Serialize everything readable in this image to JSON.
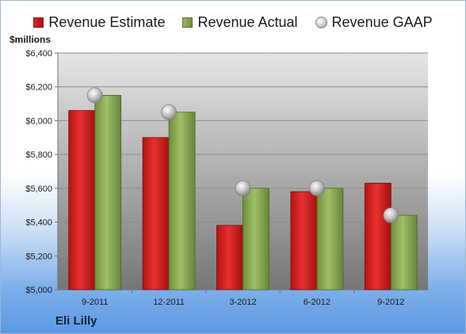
{
  "legend": {
    "estimate": "Revenue Estimate",
    "actual": "Revenue Actual",
    "gaap": "Revenue GAAP"
  },
  "unit_label": "$millions",
  "company": "Eli Lilly",
  "colors": {
    "estimate": "#c81e1e",
    "actual": "#86a651",
    "gaap": "#b9b9b9"
  },
  "chart_data": {
    "type": "bar",
    "categories": [
      "9-2011",
      "12-2011",
      "3-2012",
      "6-2012",
      "9-2012"
    ],
    "series": [
      {
        "name": "Revenue Estimate",
        "type": "bar",
        "values": [
          6060,
          5900,
          5380,
          5580,
          5630
        ]
      },
      {
        "name": "Revenue Actual",
        "type": "bar",
        "values": [
          6150,
          6050,
          5600,
          5600,
          5440
        ]
      },
      {
        "name": "Revenue GAAP",
        "type": "scatter",
        "values": [
          6150,
          6050,
          5600,
          5600,
          5440
        ]
      }
    ],
    "ylabel": "$millions",
    "ylim": [
      5000,
      6400
    ],
    "yticks": [
      5000,
      5200,
      5400,
      5600,
      5800,
      6000,
      6200,
      6400
    ],
    "ytick_labels": [
      "$5,000",
      "$5,200",
      "$5,400",
      "$5,600",
      "$5,800",
      "$6,000",
      "$6,200",
      "$6,400"
    ],
    "grid": true,
    "legend_position": "top"
  }
}
